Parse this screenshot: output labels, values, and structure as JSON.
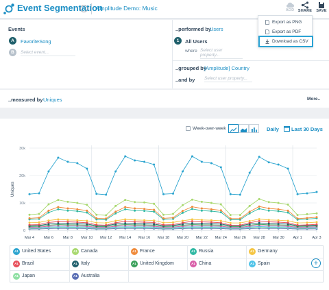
{
  "header": {
    "title": "Event Segmentation",
    "project": "Amplitude Demo: Music",
    "tools": [
      {
        "label": "ADD",
        "icon": "cloud-icon",
        "disabled": true
      },
      {
        "label": "SHARE",
        "icon": "share-icon",
        "disabled": false
      },
      {
        "label": "SAVE",
        "icon": "save-icon",
        "disabled": false
      }
    ]
  },
  "export_menu": {
    "items": [
      {
        "label": "Export as PNG",
        "icon": "file-image-icon"
      },
      {
        "label": "Export as PDF",
        "icon": "file-pdf-icon"
      },
      {
        "label": "Download as CSV",
        "icon": "download-icon",
        "highlighted": true
      }
    ]
  },
  "events": {
    "heading": "Events",
    "items": [
      {
        "badge": "A",
        "label": "FavoriteSong"
      },
      {
        "badge": "B",
        "placeholder": "Select event..."
      }
    ]
  },
  "performed_by": {
    "label": "..performed by",
    "value": "Users",
    "segment_badge": "1",
    "segment_label": "All Users",
    "where_label": "where",
    "where_placeholder": "Select user property..."
  },
  "grouped_by": {
    "label": "..grouped by",
    "value": "[Amplitude] Country",
    "and_label": "..and by",
    "and_placeholder": "Select user property..."
  },
  "measured_by": {
    "label": "..measured by",
    "value": "Uniques",
    "more_label": "More.."
  },
  "controls": {
    "week_over_week_label": "Week-over-week",
    "interval": "Daily",
    "range": "Last 30 Days"
  },
  "colors": {
    "accent": "#1b8ec4",
    "highlight": "#2aa3d4"
  },
  "chart_data": {
    "type": "line",
    "ylabel": "Uniques",
    "ylim": [
      0,
      30000
    ],
    "y_ticks": [
      "0",
      "10k",
      "20k",
      "30k"
    ],
    "x_tick_labels": [
      "Mar 4",
      "Mar 6",
      "Mar 8",
      "Mar 10",
      "Mar 12",
      "Mar 14",
      "Mar 16",
      "Mar 18",
      "Mar 20",
      "Mar 22",
      "Mar 24",
      "Mar 26",
      "Mar 28",
      "Mar 30",
      "Apr 1",
      "Apr 3"
    ],
    "x": [
      "Mar 4",
      "Mar 5",
      "Mar 6",
      "Mar 7",
      "Mar 8",
      "Mar 9",
      "Mar 10",
      "Mar 11",
      "Mar 12",
      "Mar 13",
      "Mar 14",
      "Mar 15",
      "Mar 16",
      "Mar 17",
      "Mar 18",
      "Mar 19",
      "Mar 20",
      "Mar 21",
      "Mar 22",
      "Mar 23",
      "Mar 24",
      "Mar 25",
      "Mar 26",
      "Mar 27",
      "Mar 28",
      "Mar 29",
      "Mar 30",
      "Mar 31",
      "Apr 1",
      "Apr 2",
      "Apr 3"
    ],
    "series": [
      {
        "name": "United States",
        "badge": "A1",
        "color": "#2ba4cf",
        "values": [
          13200,
          13500,
          21500,
          26500,
          25000,
          24500,
          22500,
          13300,
          13000,
          21500,
          27000,
          25500,
          25000,
          24000,
          13200,
          13400,
          21500,
          27000,
          25000,
          24500,
          23000,
          13200,
          13000,
          21000,
          26800,
          24800,
          24000,
          22500,
          13200,
          13500,
          14000
        ]
      },
      {
        "name": "Canada",
        "badge": "A1",
        "color": "#a8d86e",
        "values": [
          5700,
          6000,
          9500,
          11100,
          10400,
          10000,
          9300,
          5700,
          5500,
          8900,
          11100,
          10300,
          10200,
          9700,
          5700,
          6000,
          9200,
          11200,
          10400,
          10000,
          9500,
          5600,
          5600,
          8900,
          11400,
          10300,
          10000,
          9400,
          5600,
          5900,
          6200
        ]
      },
      {
        "name": "France",
        "badge": "A1",
        "color": "#ef8a3b",
        "values": [
          4400,
          4600,
          7200,
          8500,
          8000,
          7700,
          7200,
          4400,
          4300,
          6800,
          8500,
          8000,
          7800,
          7500,
          4400,
          4600,
          7100,
          8600,
          8000,
          7700,
          7300,
          4300,
          4300,
          6800,
          8700,
          8000,
          7700,
          7200,
          4300,
          4500,
          4800
        ]
      },
      {
        "name": "Russia",
        "badge": "A1",
        "color": "#2fb8a3",
        "values": [
          4000,
          4200,
          6500,
          7700,
          7200,
          7000,
          6500,
          4000,
          3900,
          6200,
          7700,
          7200,
          7100,
          6800,
          4000,
          4200,
          6400,
          7800,
          7200,
          7000,
          6600,
          3900,
          3900,
          6200,
          7900,
          7200,
          7000,
          6500,
          3900,
          4100,
          4400
        ]
      },
      {
        "name": "Germany",
        "badge": "A1",
        "color": "#f5c542",
        "values": [
          2800,
          2900,
          3600,
          4000,
          3800,
          3700,
          3500,
          2800,
          2700,
          3500,
          4000,
          3800,
          3700,
          3600,
          2800,
          2900,
          3500,
          4000,
          3800,
          3700,
          3500,
          2700,
          2700,
          3400,
          4100,
          3800,
          3700,
          3500,
          2700,
          2800,
          3000
        ]
      },
      {
        "name": "Brazil",
        "badge": "A1",
        "color": "#e8505b",
        "values": [
          2000,
          2100,
          2900,
          3200,
          3100,
          3000,
          2800,
          2000,
          1900,
          2800,
          3300,
          3100,
          3000,
          2900,
          2000,
          2100,
          2800,
          3300,
          3100,
          3000,
          2800,
          1900,
          1900,
          2800,
          3400,
          3100,
          3000,
          2800,
          1900,
          2000,
          2200
        ]
      },
      {
        "name": "Italy",
        "badge": "A1",
        "color": "#1f5f6b",
        "values": [
          1700,
          1800,
          2300,
          2600,
          2500,
          2400,
          2300,
          1700,
          1700,
          2300,
          2600,
          2500,
          2400,
          2300,
          1700,
          1800,
          2300,
          2600,
          2500,
          2400,
          2300,
          1700,
          1700,
          2300,
          2700,
          2500,
          2400,
          2300,
          1700,
          1800,
          1900
        ]
      },
      {
        "name": "United Kingdom",
        "badge": "A1",
        "color": "#3aa05a",
        "values": [
          1400,
          1500,
          1900,
          2100,
          2000,
          2000,
          1900,
          1400,
          1400,
          1900,
          2100,
          2000,
          2000,
          1900,
          1400,
          1500,
          1900,
          2100,
          2000,
          2000,
          1900,
          1400,
          1400,
          1900,
          2200,
          2000,
          2000,
          1900,
          1400,
          1500,
          1600
        ]
      },
      {
        "name": "China",
        "badge": "A1",
        "color": "#d95fa8",
        "values": [
          1100,
          1200,
          1500,
          1700,
          1600,
          1600,
          1500,
          1100,
          1100,
          1500,
          1700,
          1600,
          1600,
          1500,
          1100,
          1200,
          1500,
          1700,
          1600,
          1600,
          1500,
          1100,
          1100,
          1500,
          1800,
          1600,
          1600,
          1500,
          1100,
          1200,
          1300
        ]
      },
      {
        "name": "Spain",
        "badge": "A1",
        "color": "#4fc3e8",
        "values": [
          900,
          950,
          1200,
          1300,
          1250,
          1250,
          1200,
          900,
          900,
          1200,
          1300,
          1250,
          1250,
          1200,
          900,
          950,
          1200,
          1300,
          1250,
          1250,
          1200,
          900,
          900,
          1200,
          1400,
          1250,
          1250,
          1200,
          900,
          950,
          1000
        ]
      },
      {
        "name": "Japan",
        "badge": "A1",
        "color": "#8fe0a4",
        "values": [
          700,
          750,
          950,
          1050,
          1000,
          1000,
          950,
          700,
          700,
          950,
          1050,
          1000,
          1000,
          950,
          700,
          750,
          950,
          1050,
          1000,
          1000,
          950,
          700,
          700,
          950,
          1100,
          1000,
          1000,
          950,
          700,
          750,
          800
        ]
      },
      {
        "name": "Australia",
        "badge": "A1",
        "color": "#5b6fb5",
        "values": [
          500,
          520,
          650,
          720,
          700,
          690,
          650,
          500,
          490,
          650,
          720,
          700,
          690,
          660,
          500,
          520,
          650,
          730,
          700,
          690,
          660,
          490,
          490,
          650,
          750,
          700,
          690,
          660,
          490,
          520,
          550
        ]
      }
    ]
  }
}
